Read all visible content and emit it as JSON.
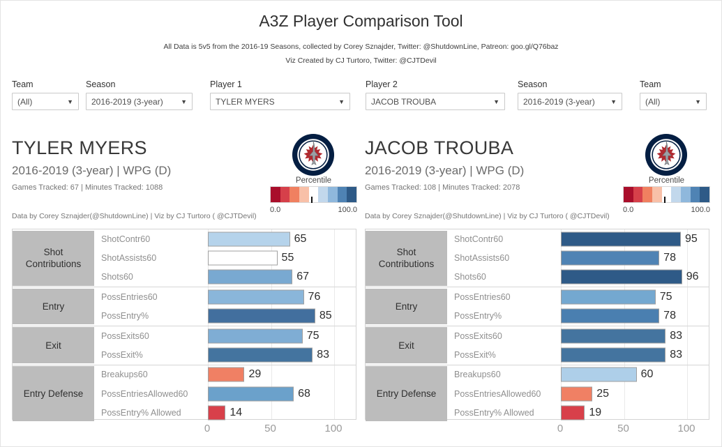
{
  "header": {
    "title": "A3Z Player Comparison Tool",
    "subtitle1": "All Data is 5v5 from the 2016-19 Seasons, collected by Corey Sznajder, Twitter: @ShutdownLine, Patreon: goo.gl/Q76baz",
    "subtitle2": "Viz Created by CJ Turtoro, Twitter: @CJTDevil"
  },
  "filters": [
    {
      "label": "Team",
      "value": "(All)"
    },
    {
      "label": "Season",
      "value": "2016-2019 (3-year)"
    },
    {
      "label": "Player 1",
      "value": "TYLER MYERS"
    },
    {
      "label": "Player 2",
      "value": "JACOB TROUBA"
    },
    {
      "label": "Season",
      "value": "2016-2019 (3-year)"
    },
    {
      "label": "Team",
      "value": "(All)"
    }
  ],
  "players": [
    {
      "name": "TYLER MYERS",
      "season_team": "2016-2019 (3-year) | WPG (D)",
      "tracked": "Games Tracked: 67  | Minutes Tracked: 1088",
      "attribution": "Data by Corey Sznajder(@ShutdownLine) | Viz by CJ Turtoro ( @CJTDevil)",
      "team_logo": "winnipeg-jets"
    },
    {
      "name": "JACOB TROUBA",
      "season_team": "2016-2019 (3-year) | WPG (D)",
      "tracked": "Games Tracked: 108  | Minutes Tracked: 2078",
      "attribution": "Data by Corey Sznajder(@ShutdownLine) | Viz by CJ Turtoro ( @CJTDevil)",
      "team_logo": "winnipeg-jets"
    }
  ],
  "percentile_legend": {
    "title": "Percentile",
    "min_label": "0.0",
    "max_label": "100.0",
    "tick_pct": 48,
    "colors": [
      "#a90e2b",
      "#d6404a",
      "#f08060",
      "#f8c0a8",
      "#ffffff",
      "#c2d8ec",
      "#8fb8dc",
      "#4f83b4",
      "#2e5a87"
    ]
  },
  "chart_data": [
    {
      "type": "bar",
      "title": "TYLER MYERS percentiles",
      "xlabel": "Percentile",
      "xlim": [
        0,
        100
      ],
      "x_ticks": [
        0,
        50,
        100
      ],
      "grid": true,
      "groups": [
        {
          "name": "Shot Contributions",
          "rows": [
            {
              "label": "ShotContr60",
              "value": 65,
              "color": "#b5d3eb"
            },
            {
              "label": "ShotAssists60",
              "value": 55,
              "color": "#ffffff"
            },
            {
              "label": "Shots60",
              "value": 67,
              "color": "#79a9d1"
            }
          ]
        },
        {
          "name": "Entry",
          "rows": [
            {
              "label": "PossEntries60",
              "value": 76,
              "color": "#8ab6da"
            },
            {
              "label": "PossEntry%",
              "value": 85,
              "color": "#426f9e"
            }
          ]
        },
        {
          "name": "Exit",
          "rows": [
            {
              "label": "PossExits60",
              "value": 75,
              "color": "#7fadd4"
            },
            {
              "label": "PossExit%",
              "value": 83,
              "color": "#44749f"
            }
          ]
        },
        {
          "name": "Entry Defense",
          "rows": [
            {
              "label": "Breakups60",
              "value": 29,
              "color": "#f08064"
            },
            {
              "label": "PossEntriesAllowed60",
              "value": 68,
              "color": "#6ba1cb"
            },
            {
              "label": "PossEntry% Allowed",
              "value": 14,
              "color": "#d8404a"
            }
          ]
        }
      ]
    },
    {
      "type": "bar",
      "title": "JACOB TROUBA percentiles",
      "xlabel": "Percentile",
      "xlim": [
        0,
        100
      ],
      "x_ticks": [
        0,
        50,
        100
      ],
      "grid": true,
      "groups": [
        {
          "name": "Shot Contributions",
          "rows": [
            {
              "label": "ShotContr60",
              "value": 95,
              "color": "#2e5a87"
            },
            {
              "label": "ShotAssists60",
              "value": 78,
              "color": "#4f83b4"
            },
            {
              "label": "Shots60",
              "value": 96,
              "color": "#2e5a87"
            }
          ]
        },
        {
          "name": "Entry",
          "rows": [
            {
              "label": "PossEntries60",
              "value": 75,
              "color": "#74a8d0"
            },
            {
              "label": "PossEntry%",
              "value": 78,
              "color": "#4a7fb0"
            }
          ]
        },
        {
          "name": "Exit",
          "rows": [
            {
              "label": "PossExits60",
              "value": 83,
              "color": "#44749f"
            },
            {
              "label": "PossExit%",
              "value": 83,
              "color": "#44749f"
            }
          ]
        },
        {
          "name": "Entry Defense",
          "rows": [
            {
              "label": "Breakups60",
              "value": 60,
              "color": "#aecfe9"
            },
            {
              "label": "PossEntriesAllowed60",
              "value": 25,
              "color": "#f08064"
            },
            {
              "label": "PossEntry% Allowed",
              "value": 19,
              "color": "#d8404a"
            }
          ]
        }
      ]
    }
  ]
}
